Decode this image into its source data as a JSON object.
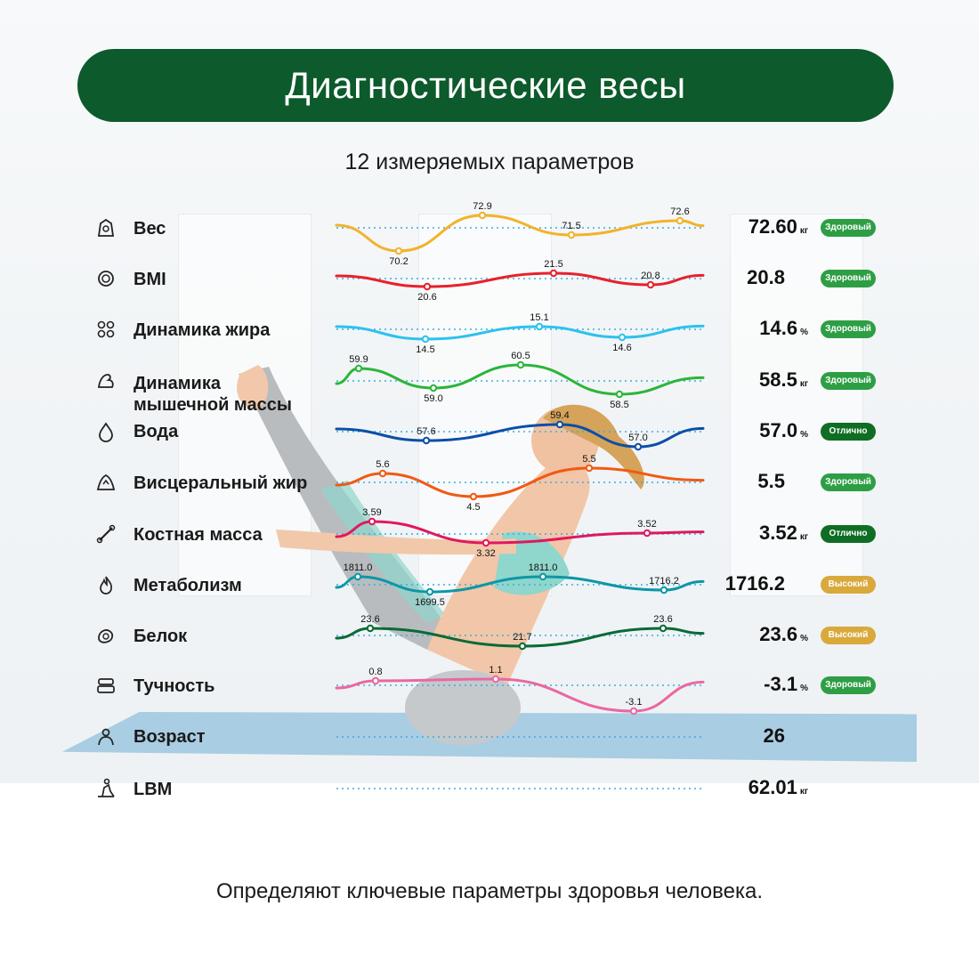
{
  "header": {
    "title": "Диагностические весы",
    "subtitle": "12 измеряемых параметров"
  },
  "footer": {
    "text": "Определяют ключевые параметры здоровья человека."
  },
  "colors": {
    "title_bar": "#0d5a2c",
    "badge_healthy": "#2e9e45",
    "badge_excellent": "#0f6e24",
    "badge_high": "#d9a93b",
    "baseline": "#38aee0"
  },
  "params": [
    {
      "icon": "scale-icon",
      "label": "Вес",
      "value": "72.60",
      "unit": "кг",
      "status": "Здоровый",
      "status_type": "healthy",
      "color": "#f2b32a",
      "points": [
        {
          "value": "70.2",
          "pos": "below"
        },
        {
          "value": "72.9",
          "pos": "above"
        },
        {
          "value": "71.5",
          "pos": "above"
        },
        {
          "value": "72.6",
          "pos": "above"
        }
      ]
    },
    {
      "icon": "bmi-icon",
      "label": "BMI",
      "value": "20.8",
      "unit": "",
      "status": "Здоровый",
      "status_type": "healthy",
      "color": "#e8212b",
      "points": [
        {
          "value": "20.6",
          "pos": "below"
        },
        {
          "value": "21.5",
          "pos": "above"
        },
        {
          "value": "20.8",
          "pos": "above"
        }
      ]
    },
    {
      "icon": "fat-icon",
      "label": "Динамика жира",
      "value": "14.6",
      "unit": "%",
      "status": "Здоровый",
      "status_type": "healthy",
      "color": "#2cc2ee",
      "points": [
        {
          "value": "14.5",
          "pos": "below"
        },
        {
          "value": "15.1",
          "pos": "above"
        },
        {
          "value": "14.6",
          "pos": "below"
        }
      ]
    },
    {
      "icon": "muscle-icon",
      "label": "Динамика мышечной массы",
      "value": "58.5",
      "unit": "кг",
      "status": "Здоровый",
      "status_type": "healthy",
      "color": "#2cb53a",
      "points": [
        {
          "value": "59.9",
          "pos": "above"
        },
        {
          "value": "59.0",
          "pos": "below"
        },
        {
          "value": "60.5",
          "pos": "above"
        },
        {
          "value": "58.5",
          "pos": "below"
        }
      ]
    },
    {
      "icon": "water-icon",
      "label": "Вода",
      "value": "57.0",
      "unit": "%",
      "status": "Отлично",
      "status_type": "excellent",
      "color": "#0c4ea7",
      "points": [
        {
          "value": "57.6",
          "pos": "above"
        },
        {
          "value": "59.4",
          "pos": "above"
        },
        {
          "value": "57.0",
          "pos": "above"
        }
      ]
    },
    {
      "icon": "visceral-fat-icon",
      "label": "Висцеральный жир",
      "value": "5.5",
      "unit": "",
      "status": "Здоровый",
      "status_type": "healthy",
      "color": "#f05a14",
      "points": [
        {
          "value": "5.6",
          "pos": "above"
        },
        {
          "value": "4.5",
          "pos": "below"
        },
        {
          "value": "5.5",
          "pos": "above"
        }
      ]
    },
    {
      "icon": "bone-icon",
      "label": "Костная масса",
      "value": "3.52",
      "unit": "кг",
      "status": "Отлично",
      "status_type": "excellent",
      "color": "#e0185e",
      "points": [
        {
          "value": "3.59",
          "pos": "above"
        },
        {
          "value": "3.32",
          "pos": "below"
        },
        {
          "value": "3.52",
          "pos": "above"
        }
      ]
    },
    {
      "icon": "metabolism-icon",
      "label": "Метаболизм",
      "value": "1716.2",
      "unit": "",
      "status": "Высокий",
      "status_type": "high",
      "color": "#0d97a6",
      "points": [
        {
          "value": "1811.0",
          "pos": "above"
        },
        {
          "value": "1699.5",
          "pos": "below"
        },
        {
          "value": "1811.0",
          "pos": "above"
        },
        {
          "value": "1716.2",
          "pos": "above"
        }
      ]
    },
    {
      "icon": "protein-icon",
      "label": "Белок",
      "value": "23.6",
      "unit": "%",
      "status": "Высокий",
      "status_type": "high",
      "color": "#0b6a36",
      "points": [
        {
          "value": "23.6",
          "pos": "above"
        },
        {
          "value": "21.7",
          "pos": "above"
        },
        {
          "value": "23.6",
          "pos": "above"
        }
      ]
    },
    {
      "icon": "obesity-icon",
      "label": "Тучность",
      "value": "-3.1",
      "unit": "%",
      "status": "Здоровый",
      "status_type": "healthy",
      "color": "#ea68a2",
      "points": [
        {
          "value": "0.8",
          "pos": "above"
        },
        {
          "value": "1.1",
          "pos": "above"
        },
        {
          "value": "-3.1",
          "pos": "above"
        }
      ]
    },
    {
      "icon": "age-icon",
      "label": "Возраст",
      "value": "26",
      "unit": "",
      "status": "",
      "status_type": "",
      "color": "#38aee0",
      "points": []
    },
    {
      "icon": "lbm-icon",
      "label": "LBM",
      "value": "62.01",
      "unit": "кг",
      "status": "",
      "status_type": "",
      "color": "#38aee0",
      "points": []
    }
  ]
}
